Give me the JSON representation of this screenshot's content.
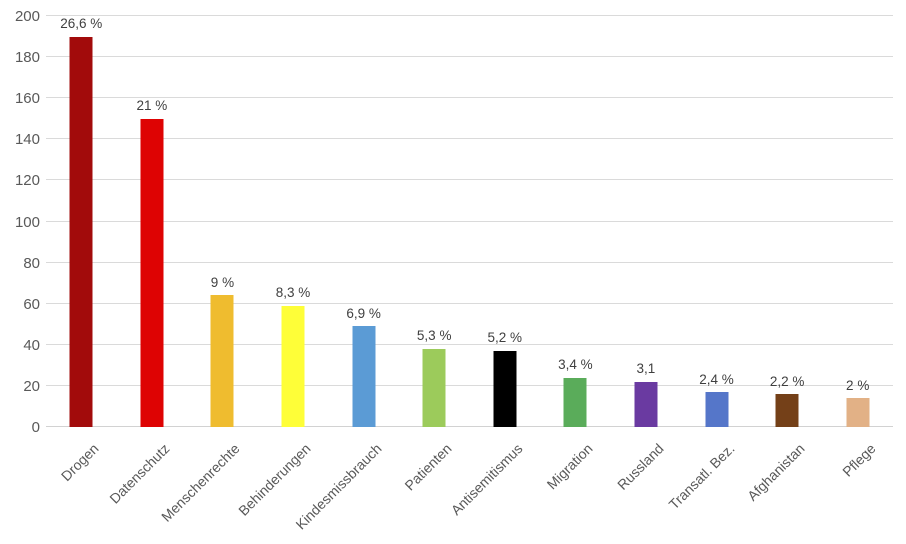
{
  "chart_data": {
    "type": "bar",
    "title": "",
    "xlabel": "",
    "ylabel": "",
    "categories": [
      "Drogen",
      "Datenschutz",
      "Menschenrechte",
      "Behinderungen",
      "Kindesmissbrauch",
      "Patienten",
      "Antisemitismus",
      "Migration",
      "Russland",
      "Transatl. Bez.",
      "Afghanistan",
      "Pflege"
    ],
    "values": [
      190,
      150,
      64,
      59,
      49,
      38,
      37,
      24,
      22,
      17,
      16,
      14
    ],
    "data_labels": [
      "26,6 %",
      "21 %",
      "9 %",
      "8,3 %",
      "6,9 %",
      "5,3 %",
      "5,2 %",
      "3,4 %",
      "3,1",
      "2,4 %",
      "2,2 %",
      "2 %"
    ],
    "bar_colors": [
      "#A20B0B",
      "#DE0303",
      "#EFBC2F",
      "#FEFE38",
      "#5B9BD5",
      "#9CCB5B",
      "#000000",
      "#5AAC5A",
      "#6A3AA1",
      "#5576C9",
      "#744018",
      "#E2B186"
    ],
    "ylim": [
      0,
      200
    ],
    "yticks": [
      0,
      20,
      40,
      60,
      80,
      100,
      120,
      140,
      160,
      180,
      200
    ],
    "grid": true,
    "legend": false,
    "gridline_color": "#dadada",
    "tick_label_color": "#595959",
    "data_label_color": "#3f3f3f"
  }
}
